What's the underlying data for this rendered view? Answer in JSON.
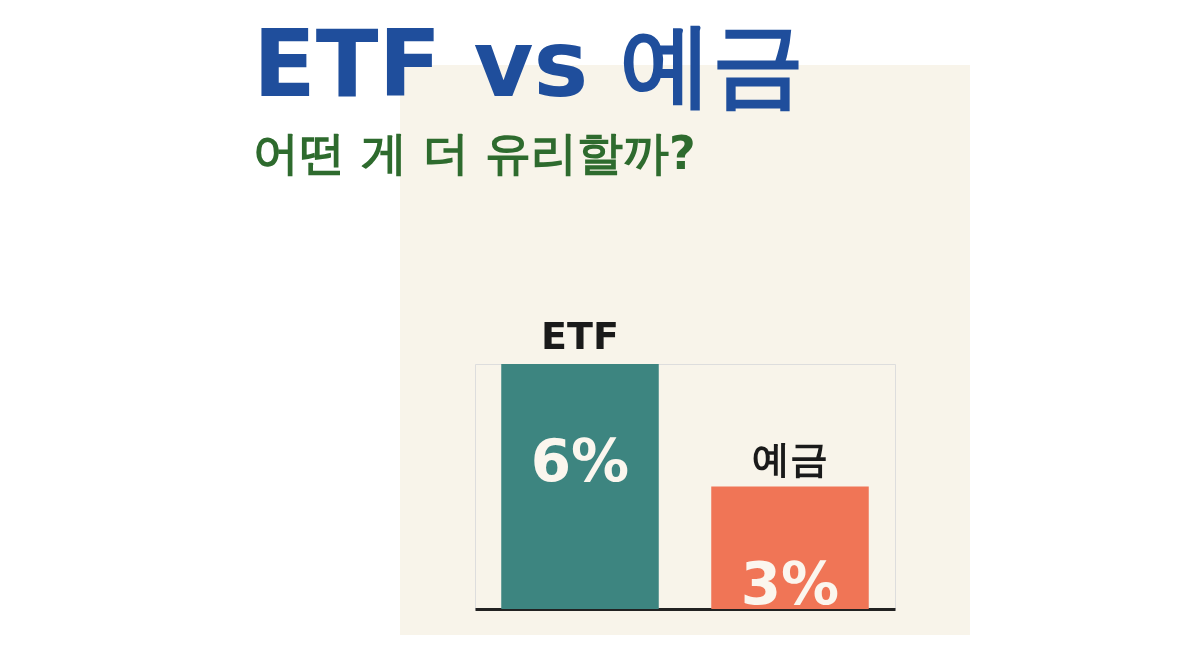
{
  "chart_data": {
    "type": "bar",
    "title": "ETF vs 예금",
    "subtitle": "어떤 게 더 유리할까?",
    "categories": [
      "ETF",
      "예금"
    ],
    "values": [
      6,
      3
    ],
    "value_labels": [
      "6%",
      "3%"
    ],
    "colors": [
      "#3d8580",
      "#f07556"
    ]
  }
}
